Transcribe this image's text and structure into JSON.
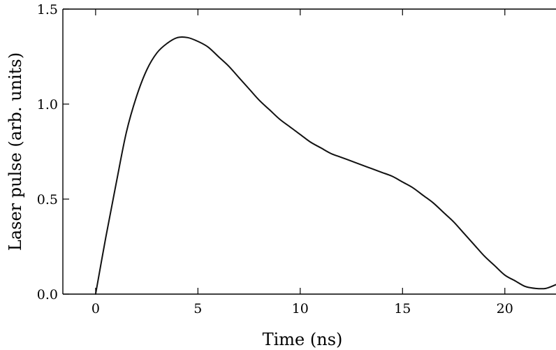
{
  "chart_data": {
    "type": "line",
    "title": "",
    "xlabel": "Time (ns)",
    "ylabel": "Laser pulse (arb. units)",
    "xlim": [
      -1.6,
      22.5
    ],
    "ylim": [
      0.0,
      1.5
    ],
    "xticks": [
      0,
      5,
      10,
      15,
      20
    ],
    "yticks": [
      0.0,
      0.5,
      1.0,
      1.5
    ],
    "xtick_labels": [
      "0",
      "5",
      "10",
      "15",
      "20"
    ],
    "ytick_labels": [
      "0.0",
      "0.5",
      "1.0",
      "1.5"
    ],
    "grid": false,
    "series": [
      {
        "x": [
          0,
          0.5,
          1,
          1.5,
          2,
          2.5,
          3,
          3.5,
          4,
          4.5,
          5,
          5.5,
          6,
          6.5,
          7,
          7.5,
          8,
          8.5,
          9,
          9.5,
          10,
          10.5,
          11,
          11.5,
          12,
          12.5,
          13,
          13.5,
          14,
          14.5,
          15,
          15.5,
          16,
          16.5,
          17,
          17.5,
          18,
          18.5,
          19,
          19.5,
          20,
          20.5,
          21,
          21.5,
          22,
          22.5
        ],
        "y": [
          0.0,
          0.3,
          0.58,
          0.85,
          1.04,
          1.18,
          1.27,
          1.32,
          1.35,
          1.35,
          1.33,
          1.3,
          1.25,
          1.2,
          1.14,
          1.08,
          1.02,
          0.97,
          0.92,
          0.88,
          0.84,
          0.8,
          0.77,
          0.74,
          0.72,
          0.7,
          0.68,
          0.66,
          0.64,
          0.62,
          0.59,
          0.56,
          0.52,
          0.48,
          0.43,
          0.38,
          0.32,
          0.26,
          0.2,
          0.15,
          0.1,
          0.07,
          0.04,
          0.03,
          0.03,
          0.05
        ],
        "color": "#111111"
      }
    ]
  }
}
